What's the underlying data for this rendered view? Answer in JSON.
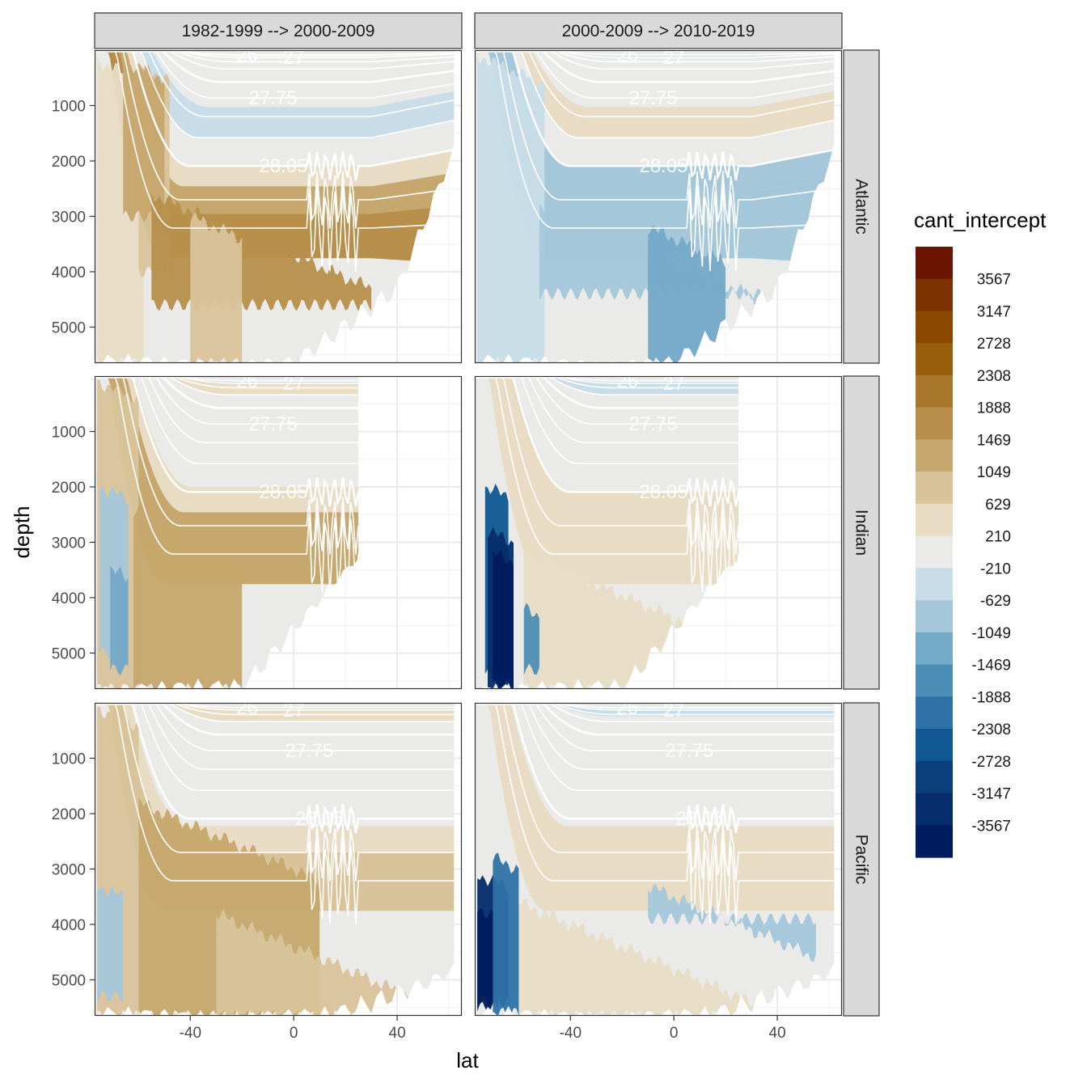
{
  "chart_data": {
    "type": "heatmap",
    "title": "",
    "xlabel": "lat",
    "ylabel": "depth",
    "column_facets": [
      "1982-1999 --> 2000-2009",
      "2000-2009 --> 2010-2019"
    ],
    "row_facets": [
      "Atlantic",
      "Indian",
      "Pacific"
    ],
    "x_ticks": [
      -40,
      0,
      40
    ],
    "y_ticks": [
      1000,
      2000,
      3000,
      4000,
      5000
    ],
    "xlim": [
      -77,
      65
    ],
    "ylim_reversed": [
      5650,
      0
    ],
    "legend": {
      "title": "cant_intercept",
      "placement": "right",
      "labels": [
        "3567",
        "3147",
        "2728",
        "2308",
        "1888",
        "1469",
        "1049",
        "629",
        "210",
        "-210",
        "-629",
        "-1049",
        "-1469",
        "-1888",
        "-2308",
        "-2728",
        "-3147",
        "-3567"
      ],
      "colors": [
        "#6b1500",
        "#7d3100",
        "#8b4800",
        "#975e0d",
        "#a7782c",
        "#b78f4b",
        "#c6a76d",
        "#d9c39a",
        "#e8dcc5",
        "#eaebe9",
        "#c8dde8",
        "#a4c7da",
        "#73a9c9",
        "#4c8eb6",
        "#2f72a8",
        "#0f5893",
        "#083f7c",
        "#042d6a",
        "#001b5e"
      ]
    },
    "isopycnals": [
      26,
      27,
      27.25,
      27.5,
      27.75,
      27.85,
      27.95,
      28.05,
      28.1,
      28.15,
      28.2
    ],
    "isopycnal_labels": [
      "26",
      "27",
      "27.75",
      "28.05"
    ],
    "series": [
      {
        "facet": "Atlantic / 1982-1999 --> 2000-2009",
        "dominant_values": [
          1049,
          629,
          -210,
          -629,
          1469,
          1888
        ]
      },
      {
        "facet": "Atlantic / 2000-2009 --> 2010-2019",
        "dominant_values": [
          -629,
          -210,
          629,
          -1049,
          -1469
        ]
      },
      {
        "facet": "Indian / 1982-1999 --> 2000-2009",
        "dominant_values": [
          629,
          1049,
          1469,
          -210,
          -629,
          -1049,
          -1469
        ]
      },
      {
        "facet": "Indian / 2000-2009 --> 2010-2019",
        "dominant_values": [
          -210,
          629,
          -629,
          -3567,
          -3147,
          -2728,
          -2308
        ]
      },
      {
        "facet": "Pacific / 1982-1999 --> 2000-2009",
        "dominant_values": [
          -210,
          629,
          1049,
          1469,
          -629,
          -1049
        ]
      },
      {
        "facet": "Pacific / 2000-2009 --> 2010-2019",
        "dominant_values": [
          -210,
          629,
          -629,
          -3567,
          -2728
        ]
      }
    ]
  }
}
